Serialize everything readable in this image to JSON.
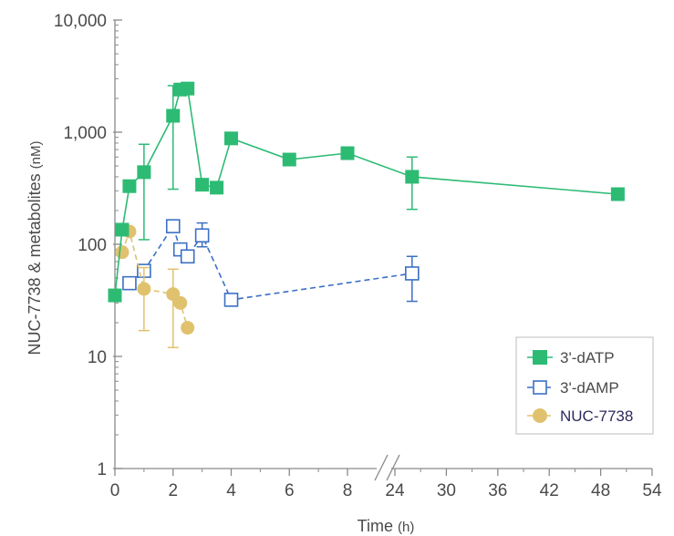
{
  "chart_data": {
    "type": "line",
    "ylabel": "NUC-7738 & metabolites",
    "ylabel_unit": "(nM)",
    "xlabel": "Time",
    "xlabel_unit": "(h)",
    "y_scale": "log",
    "ylim": [
      1,
      10000
    ],
    "y_ticks": [
      1,
      10,
      100,
      1000,
      10000
    ],
    "y_tick_labels": [
      "1",
      "10",
      "100",
      "1,000",
      "10,000"
    ],
    "x_axis_broken": true,
    "x_segments": [
      {
        "range": [
          0,
          5
        ],
        "ticks": [
          0,
          2,
          4,
          6,
          8
        ],
        "tick_labels": [
          "0",
          "2",
          "4",
          "6",
          "8"
        ]
      },
      {
        "range": [
          24,
          54
        ],
        "ticks": [
          24,
          30,
          36,
          42,
          48,
          54
        ],
        "tick_labels": [
          "24",
          "30",
          "36",
          "42",
          "48",
          "54"
        ]
      }
    ],
    "legend_position": "bottom-right",
    "series": [
      {
        "name": "3'-dATP",
        "color": "#2dbb74",
        "marker": "filled-square",
        "line_style": "solid",
        "points": [
          {
            "x": 0,
            "y": 35
          },
          {
            "x": 0.25,
            "y": 135
          },
          {
            "x": 0.5,
            "y": 330
          },
          {
            "x": 1,
            "y": 440,
            "err_low": 110,
            "err_high": 780
          },
          {
            "x": 2,
            "y": 1400,
            "err_low": 310,
            "err_high": 2600
          },
          {
            "x": 2.25,
            "y": 2400
          },
          {
            "x": 2.5,
            "y": 2450
          },
          {
            "x": 3,
            "y": 340
          },
          {
            "x": 3.5,
            "y": 320
          },
          {
            "x": 4,
            "y": 880
          },
          {
            "x": 6,
            "y": 570
          },
          {
            "x": 8,
            "y": 650
          },
          {
            "x": 26,
            "y": 400,
            "err_low": 205,
            "err_high": 600
          },
          {
            "x": 50,
            "y": 280
          }
        ]
      },
      {
        "name": "3'-dAMP",
        "color": "#3b6fc4",
        "marker": "open-square",
        "line_style": "dashed",
        "points": [
          {
            "x": 0.5,
            "y": 45
          },
          {
            "x": 1,
            "y": 58
          },
          {
            "x": 2,
            "y": 145
          },
          {
            "x": 2.25,
            "y": 90
          },
          {
            "x": 2.5,
            "y": 78
          },
          {
            "x": 3,
            "y": 120,
            "err_low": 95,
            "err_high": 155
          },
          {
            "x": 4,
            "y": 32
          },
          {
            "x": 26,
            "y": 55,
            "err_low": 31,
            "err_high": 78
          }
        ]
      },
      {
        "name": "NUC-7738",
        "color": "#e0c26e",
        "marker": "filled-circle",
        "line_style": "dashed",
        "points": [
          {
            "x": 0.25,
            "y": 85
          },
          {
            "x": 0.5,
            "y": 130
          },
          {
            "x": 1,
            "y": 40,
            "err_low": 17,
            "err_high": 62
          },
          {
            "x": 2,
            "y": 36,
            "err_low": 12,
            "err_high": 60
          },
          {
            "x": 2.25,
            "y": 30
          },
          {
            "x": 2.5,
            "y": 18
          }
        ]
      }
    ],
    "legend_text_colors": [
      "#4a4a4a",
      "#4a4a4a",
      "#2d2a5e"
    ]
  }
}
